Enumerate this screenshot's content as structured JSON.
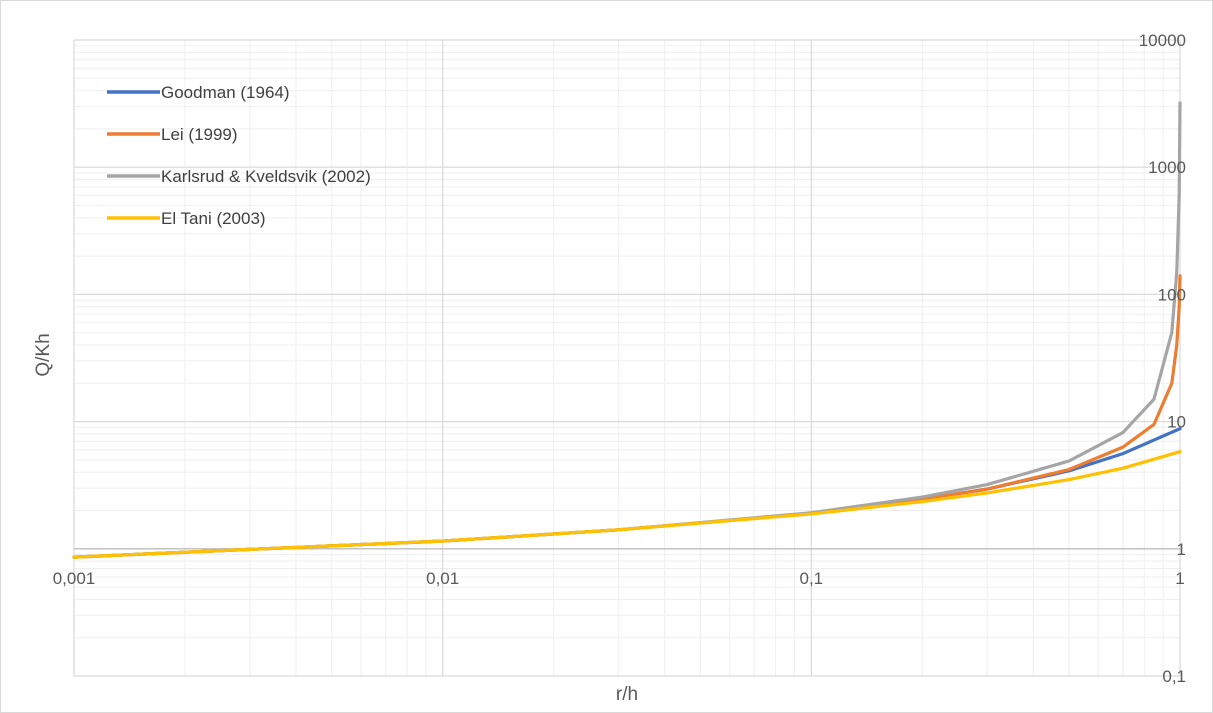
{
  "chart_data": {
    "type": "line",
    "title": "",
    "xlabel": "r/h",
    "ylabel": "Q/Kh",
    "x_scale": "log",
    "y_scale": "log",
    "xlim": [
      0.001,
      1
    ],
    "ylim": [
      0.1,
      10000
    ],
    "x_ticks": [
      "0,001",
      "0,01",
      "0,1",
      "1"
    ],
    "y_ticks": [
      "0,1",
      "1",
      "10",
      "100",
      "1000",
      "10000"
    ],
    "grid": "major and minor",
    "legend_position": "top-left",
    "series": [
      {
        "name": "Goodman (1964)",
        "color": "#4472c4",
        "points": [
          [
            0.001,
            0.86
          ],
          [
            0.003,
            0.99
          ],
          [
            0.01,
            1.15
          ],
          [
            0.03,
            1.41
          ],
          [
            0.1,
            1.9
          ],
          [
            0.2,
            2.45
          ],
          [
            0.3,
            2.95
          ],
          [
            0.5,
            4.1
          ],
          [
            0.7,
            5.6
          ],
          [
            1.0,
            8.8
          ]
        ]
      },
      {
        "name": "Lei (1999)",
        "color": "#ed7d31",
        "points": [
          [
            0.001,
            0.86
          ],
          [
            0.003,
            0.99
          ],
          [
            0.01,
            1.15
          ],
          [
            0.03,
            1.41
          ],
          [
            0.1,
            1.9
          ],
          [
            0.2,
            2.45
          ],
          [
            0.3,
            2.95
          ],
          [
            0.5,
            4.2
          ],
          [
            0.7,
            6.3
          ],
          [
            0.85,
            9.5
          ],
          [
            0.95,
            20
          ],
          [
            0.98,
            40
          ],
          [
            0.995,
            80
          ],
          [
            1.0,
            140
          ]
        ]
      },
      {
        "name": "Karlsrud & Kveldsvik (2002)",
        "color": "#a5a5a5",
        "points": [
          [
            0.001,
            0.86
          ],
          [
            0.003,
            0.99
          ],
          [
            0.01,
            1.15
          ],
          [
            0.03,
            1.41
          ],
          [
            0.1,
            1.92
          ],
          [
            0.2,
            2.55
          ],
          [
            0.3,
            3.2
          ],
          [
            0.5,
            4.9
          ],
          [
            0.7,
            8.2
          ],
          [
            0.85,
            15
          ],
          [
            0.95,
            50
          ],
          [
            0.98,
            150
          ],
          [
            0.995,
            600
          ],
          [
            1.0,
            3200
          ]
        ]
      },
      {
        "name": "El Tani (2003)",
        "color": "#ffc000",
        "points": [
          [
            0.001,
            0.86
          ],
          [
            0.003,
            0.99
          ],
          [
            0.01,
            1.15
          ],
          [
            0.03,
            1.41
          ],
          [
            0.1,
            1.88
          ],
          [
            0.2,
            2.35
          ],
          [
            0.3,
            2.75
          ],
          [
            0.5,
            3.5
          ],
          [
            0.7,
            4.3
          ],
          [
            1.0,
            5.8
          ]
        ]
      }
    ]
  }
}
